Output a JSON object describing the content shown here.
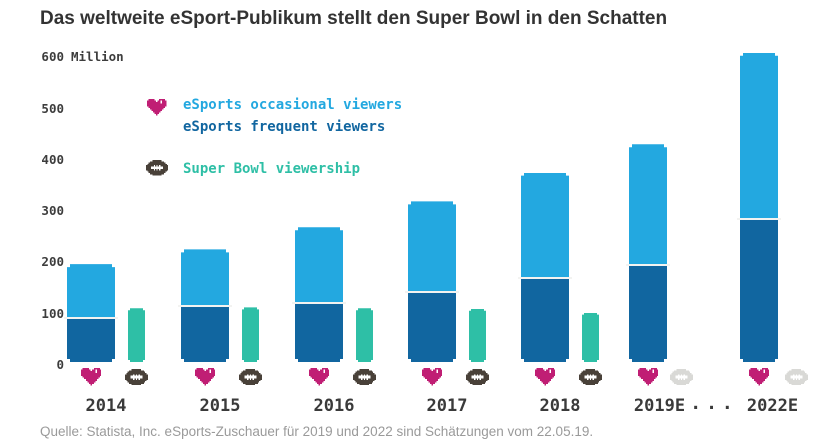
{
  "title": "Das weltweite eSport-Publikum stellt den Super Bowl in den Schatten",
  "source": "Quelle: Statista, Inc. eSports-Zuschauer für 2019 und 2022 sind Schätzungen vom 22.05.19.",
  "gap_label": "...",
  "colors": {
    "occasional": "#23a8e0",
    "frequent": "#1166a0",
    "superbowl": "#2ebfa6",
    "heart": "#c01e74",
    "heart_highlight": "#ffffff",
    "football": "#494139",
    "football_disabled": "#d9d9d6",
    "lace": "#ffffff",
    "divider": "#f3f3f1",
    "title_text": "#333333",
    "axis_text": "#3d3d3d",
    "source_text": "#9a9a9a"
  },
  "chart_data": {
    "type": "bar",
    "subtype": "stacked eSports audience bars vs single Super Bowl bar per year",
    "title": "Das weltweite eSport-Publikum stellt den Super Bowl in den Schatten",
    "unit": "Million",
    "categories": [
      "2014",
      "2015",
      "2016",
      "2017",
      "2018",
      "2019E",
      "2022E"
    ],
    "series": [
      {
        "key": "occasional",
        "name": "eSports occasional viewers",
        "values": [
          115,
          120,
          160,
          192,
          222,
          253,
          348
        ]
      },
      {
        "key": "frequent",
        "name": "eSports frequent viewers",
        "values": [
          89,
          115,
          121,
          143,
          173,
          201,
          297
        ]
      },
      {
        "key": "superbowl",
        "name": "Super Bowl viewership",
        "values": [
          112,
          114,
          112,
          111,
          103,
          null,
          null
        ]
      }
    ],
    "esports_totals": [
      204,
      235,
      281,
      335,
      395,
      454,
      645
    ],
    "xlabel": "",
    "ylabel": "Million",
    "ylim": [
      0,
      620
    ],
    "yticks": [
      0,
      100,
      200,
      300,
      400,
      500,
      600
    ],
    "grid": false,
    "legend_position": "top-left-inside",
    "notes": "2019E and 2022E are estimates; Super Bowl icon shown grayed out (no bar) for those years"
  }
}
